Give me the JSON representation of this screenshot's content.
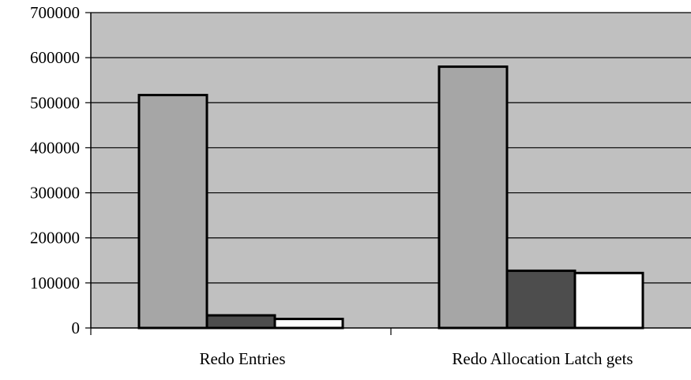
{
  "chart_data": {
    "type": "bar",
    "categories": [
      "Redo Entries",
      "Redo Allocation Latch gets"
    ],
    "series": [
      {
        "values": [
          517000,
          580000
        ],
        "color": "#a6a6a6"
      },
      {
        "values": [
          28000,
          127000
        ],
        "color": "#4d4d4d"
      },
      {
        "values": [
          20000,
          122000
        ],
        "color": "#ffffff"
      }
    ],
    "y_ticks": [
      "0",
      "100000",
      "200000",
      "300000",
      "400000",
      "500000",
      "600000",
      "700000"
    ],
    "ylim": [
      0,
      700000
    ],
    "grid": true,
    "plot_background": "#c0c0c0",
    "legend": "none"
  }
}
